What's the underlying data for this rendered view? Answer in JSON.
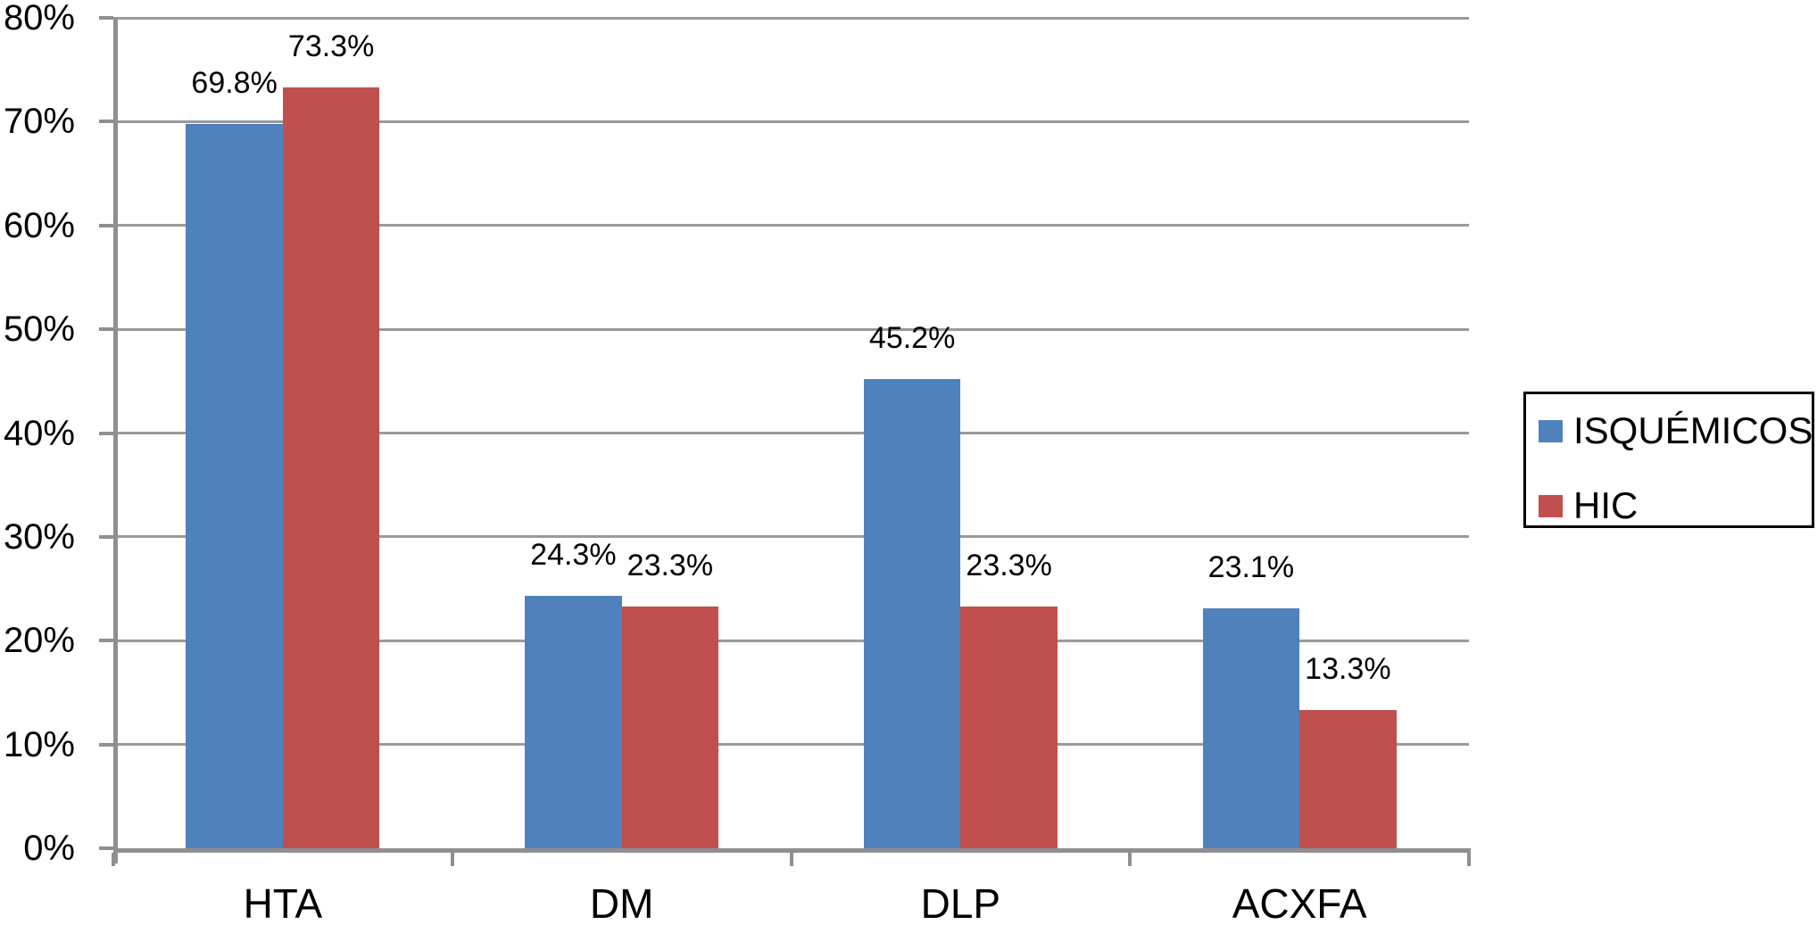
{
  "chart_data": {
    "type": "bar",
    "categories": [
      "HTA",
      "DM",
      "DLP",
      "ACXFA"
    ],
    "series": [
      {
        "name": "ISQUÉMICOS",
        "color": "#4f81bd",
        "values": [
          69.8,
          24.3,
          45.2,
          23.1
        ],
        "labels": [
          "69.8%",
          "24.3%",
          "45.2%",
          "23.1%"
        ]
      },
      {
        "name": "HIC",
        "color": "#c0504d",
        "values": [
          73.3,
          23.3,
          23.3,
          13.3
        ],
        "labels": [
          "73.3%",
          "23.3%",
          "23.3%",
          "13.3%"
        ]
      }
    ],
    "title": "",
    "xlabel": "",
    "ylabel": "",
    "ylim": [
      0,
      80
    ],
    "y_tick_labels": [
      "0%",
      "10%",
      "20%",
      "30%",
      "40%",
      "50%",
      "60%",
      "70%",
      "80%"
    ],
    "grid": true,
    "legend_position": "right"
  },
  "colors": {
    "gridline": "#9a9a9a",
    "axis": "#8f8f8f",
    "text": "#000000",
    "legend_border": "#000000",
    "background": "#ffffff"
  }
}
